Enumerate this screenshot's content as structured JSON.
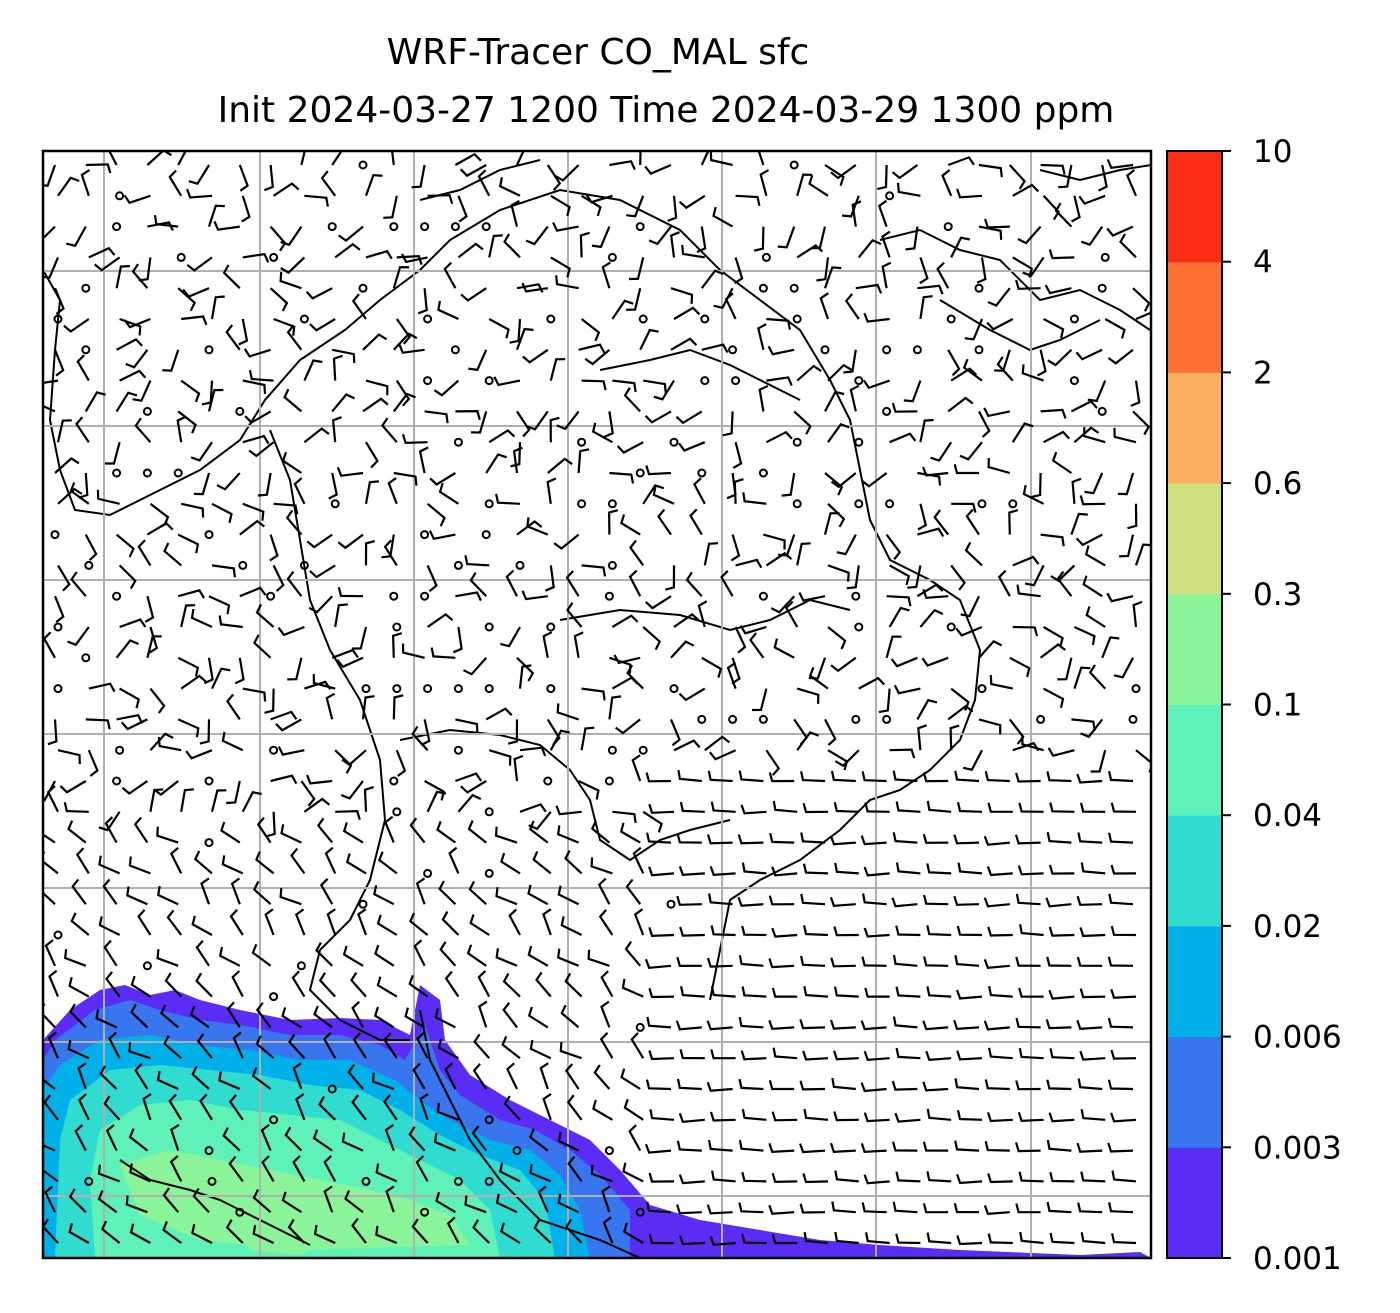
{
  "title": {
    "line1": "WRF-Tracer CO_MAL sfc",
    "line2": "Init 2024-03-27 1200 Time 2024-03-29 1300 ppm"
  },
  "colorbar": {
    "levels": [
      "0.001",
      "0.003",
      "0.006",
      "0.02",
      "0.04",
      "0.1",
      "0.3",
      "0.6",
      "2",
      "4",
      "10"
    ],
    "colors": [
      "#5b2cf5",
      "#3776ee",
      "#00b0e8",
      "#2fdccf",
      "#5ef2b8",
      "#8af598",
      "#cfe07e",
      "#fdb062",
      "#ff7034",
      "#fe2d16"
    ]
  },
  "map": {
    "land_outline_color": "#000000",
    "grid_color": "#b0b0b0",
    "wind_barb_color": "#000000",
    "tracer_plume": {
      "location": "lower-left (Bay of Bengal / southern Myanmar coast)",
      "max_level": "0.3"
    }
  }
}
